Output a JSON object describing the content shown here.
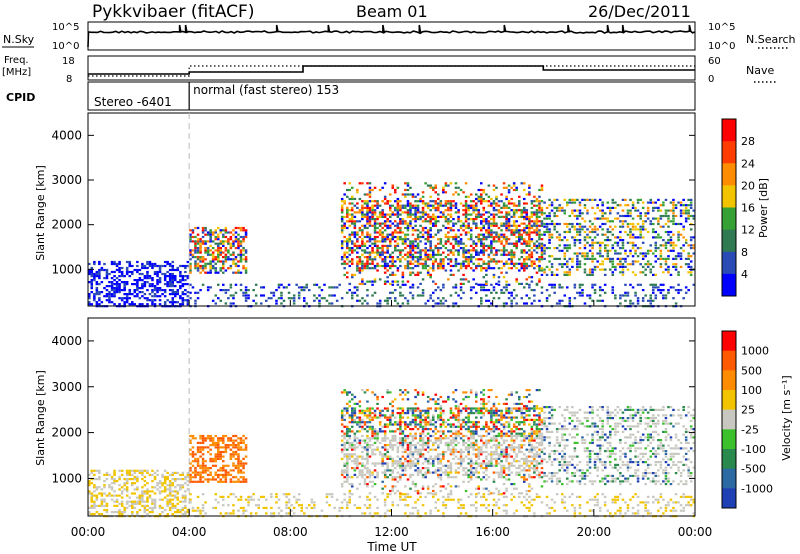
{
  "header": {
    "station": "Pykkvibaer (fitACF)",
    "beam": "Beam 01",
    "date": "26/Dec/2011"
  },
  "colors": {
    "power_scale": [
      "#0000ff",
      "#2a4bb5",
      "#2f7a52",
      "#35a033",
      "#f2c400",
      "#ff8c00",
      "#ff3c00",
      "#ff0000"
    ],
    "velocity_scale": [
      "#1f3fb5",
      "#2d6aa3",
      "#2a8a4e",
      "#3cc02b",
      "#c8c8c0",
      "#f2c400",
      "#ff8c00",
      "#ff5a00",
      "#ff0000"
    ]
  },
  "chart_data": [
    {
      "type": "line",
      "name": "noise-panel",
      "left_label": "N.Sky",
      "left_ticks": [
        "10^5",
        "10^0"
      ],
      "right_ticks": [
        "10^5",
        "10^0"
      ],
      "right_label": "N.Search",
      "xlim": [
        0,
        24
      ]
    },
    {
      "type": "line",
      "name": "frequency-panel",
      "left_label_line1": "Freq.",
      "left_label_line2": "[MHz]",
      "left_ticks": [
        "18",
        "8"
      ],
      "right_ticks": [
        "60",
        "0"
      ],
      "right_label": "Nave",
      "freq_steps": [
        {
          "x": [
            0,
            4
          ],
          "y": 10
        },
        {
          "x": [
            4,
            8.5
          ],
          "y": 11
        },
        {
          "x": [
            8.5,
            18
          ],
          "y": 14
        },
        {
          "x": [
            18,
            24
          ],
          "y": 12
        }
      ],
      "xlim": [
        0,
        24
      ]
    },
    {
      "type": "table",
      "name": "cpid-panel",
      "label": "CPID",
      "segments": [
        {
          "text": "Stereo -6401",
          "start": 0,
          "end": 4
        },
        {
          "text": "normal (fast stereo) 153",
          "start": 4,
          "end": 24
        }
      ]
    },
    {
      "type": "heatmap",
      "name": "power",
      "ylabel": "Slant Range [km]",
      "yticks": [
        1000,
        2000,
        3000,
        4000
      ],
      "ylim": [
        180,
        4500
      ],
      "xlim": [
        0,
        24
      ],
      "colorbar_label": "Power [dB]",
      "colorbar_ticks": [
        "28",
        "24",
        "20",
        "16",
        "12",
        "8",
        "4"
      ]
    },
    {
      "type": "heatmap",
      "name": "velocity",
      "ylabel": "Slant Range [km]",
      "yticks": [
        1000,
        2000,
        3000,
        4000
      ],
      "ylim": [
        180,
        4500
      ],
      "xlim": [
        0,
        24
      ],
      "colorbar_label": "Velocity [m s⁻¹]",
      "colorbar_ticks": [
        "1000",
        "500",
        "100",
        "25",
        "-25",
        "-100",
        "-500",
        "-1000"
      ]
    }
  ],
  "x_axis": {
    "ticks": [
      "00:00",
      "04:00",
      "08:00",
      "12:00",
      "16:00",
      "20:00",
      "00:00"
    ],
    "tick_values": [
      0,
      4,
      8,
      12,
      16,
      20,
      24
    ],
    "label": "Time UT"
  }
}
